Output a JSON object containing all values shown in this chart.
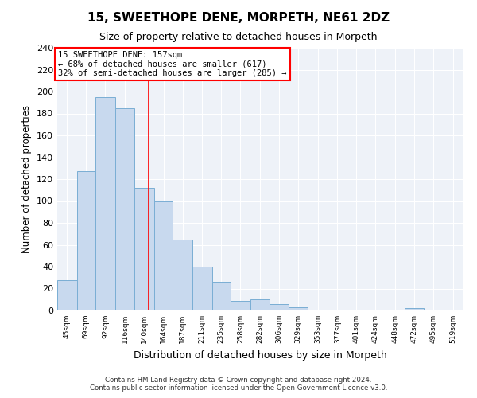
{
  "title": "15, SWEETHOPE DENE, MORPETH, NE61 2DZ",
  "subtitle": "Size of property relative to detached houses in Morpeth",
  "xlabel": "Distribution of detached houses by size in Morpeth",
  "ylabel": "Number of detached properties",
  "bin_labels": [
    "45sqm",
    "69sqm",
    "92sqm",
    "116sqm",
    "140sqm",
    "164sqm",
    "187sqm",
    "211sqm",
    "235sqm",
    "258sqm",
    "282sqm",
    "306sqm",
    "329sqm",
    "353sqm",
    "377sqm",
    "401sqm",
    "424sqm",
    "448sqm",
    "472sqm",
    "495sqm",
    "519sqm"
  ],
  "bar_heights": [
    28,
    127,
    195,
    185,
    112,
    100,
    65,
    40,
    26,
    9,
    10,
    6,
    3,
    0,
    0,
    0,
    0,
    0,
    2,
    0,
    0
  ],
  "bar_color": "#c8d9ee",
  "bar_edge_color": "#7aaed4",
  "property_line_x": 157,
  "annotation_text_line1": "15 SWEETHOPE DENE: 157sqm",
  "annotation_text_line2": "← 68% of detached houses are smaller (617)",
  "annotation_text_line3": "32% of semi-detached houses are larger (285) →",
  "footer_line1": "Contains HM Land Registry data © Crown copyright and database right 2024.",
  "footer_line2": "Contains public sector information licensed under the Open Government Licence v3.0.",
  "ylim": [
    0,
    240
  ],
  "yticks": [
    0,
    20,
    40,
    60,
    80,
    100,
    120,
    140,
    160,
    180,
    200,
    220,
    240
  ],
  "bin_edges": [
    45,
    69,
    92,
    116,
    140,
    164,
    187,
    211,
    235,
    258,
    282,
    306,
    329,
    353,
    377,
    401,
    424,
    448,
    472,
    495,
    519,
    543
  ],
  "bg_color": "#eef2f8",
  "grid_color": "#ffffff"
}
